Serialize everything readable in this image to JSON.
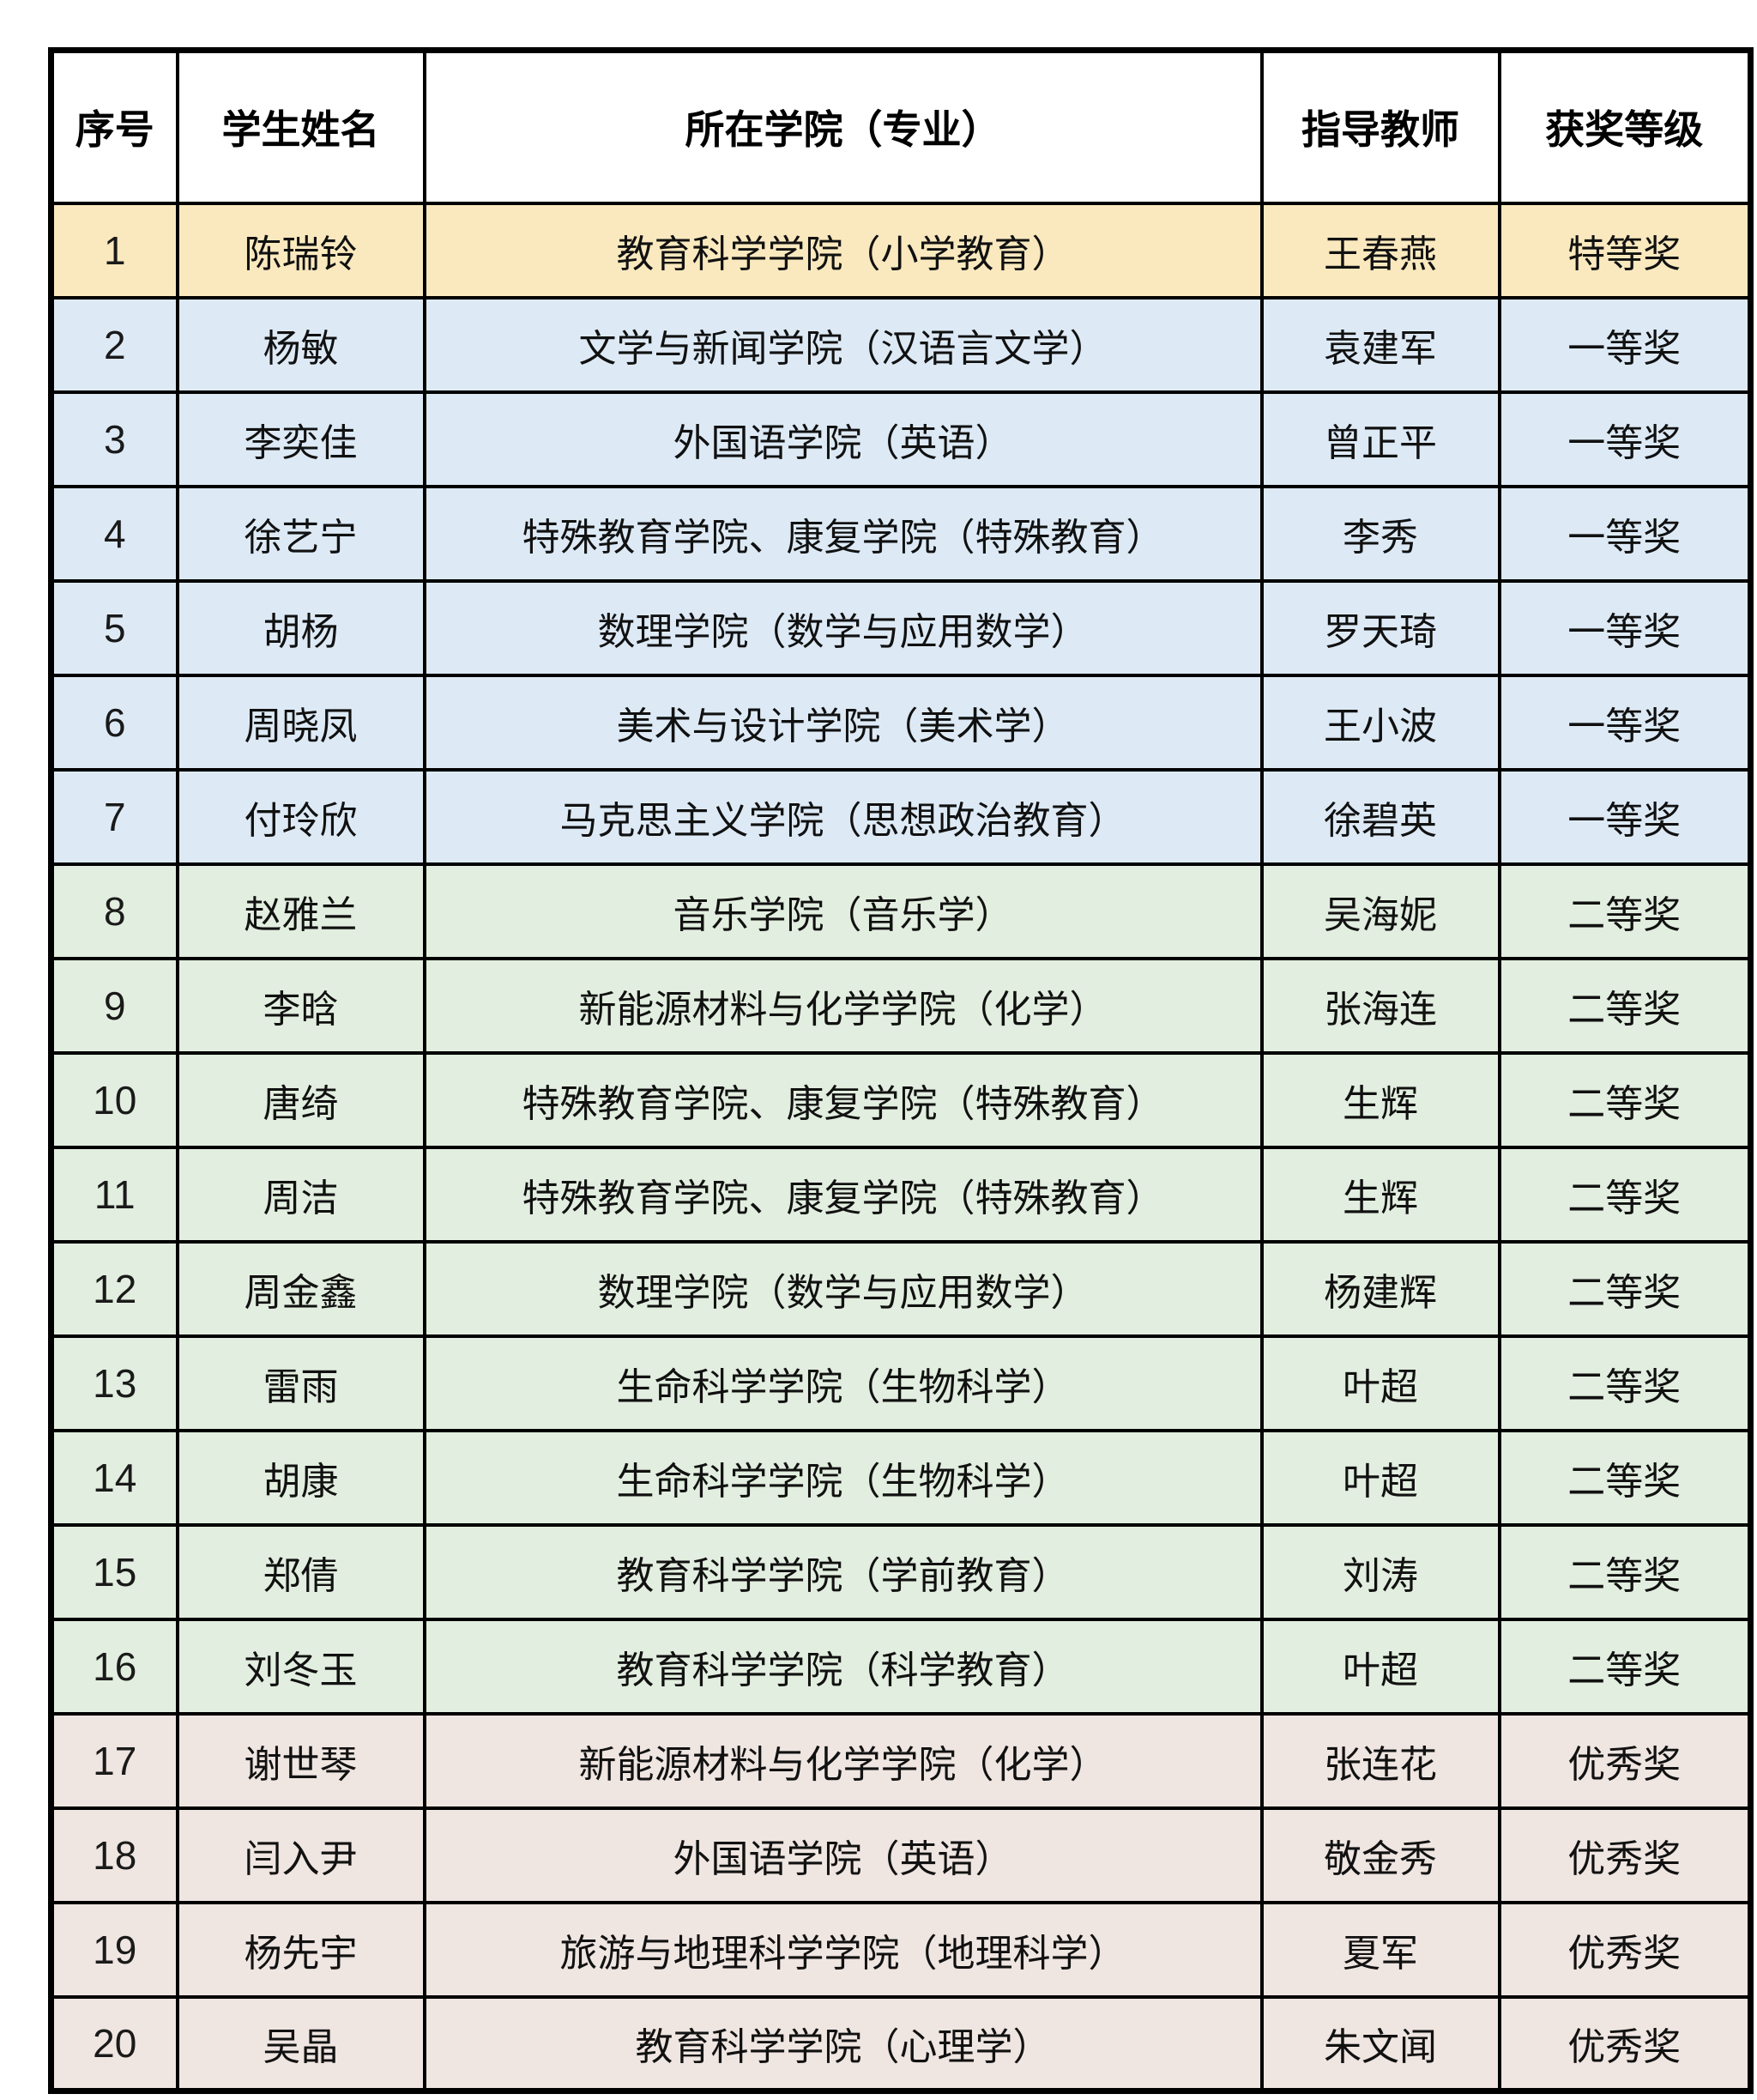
{
  "table": {
    "columns": [
      "序号",
      "学生姓名",
      "所在学院（专业）",
      "指导教师",
      "获奖等级"
    ],
    "tier_colors": {
      "special": "#FAE9BE",
      "first": "#DDEAF6",
      "second": "#E2EEDF",
      "excellent": "#EFE5E1"
    },
    "rows": [
      {
        "no": "1",
        "name": "陈瑞铃",
        "college": "教育科学学院（小学教育）",
        "teacher": "王春燕",
        "award": "特等奖",
        "tier": "special"
      },
      {
        "no": "2",
        "name": "杨敏",
        "college": "文学与新闻学院（汉语言文学）",
        "teacher": "袁建军",
        "award": "一等奖",
        "tier": "first"
      },
      {
        "no": "3",
        "name": "李奕佳",
        "college": "外国语学院（英语）",
        "teacher": "曾正平",
        "award": "一等奖",
        "tier": "first"
      },
      {
        "no": "4",
        "name": "徐艺宁",
        "college": "特殊教育学院、康复学院（特殊教育）",
        "teacher": "李秀",
        "award": "一等奖",
        "tier": "first"
      },
      {
        "no": "5",
        "name": "胡杨",
        "college": "数理学院（数学与应用数学）",
        "teacher": "罗天琦",
        "award": "一等奖",
        "tier": "first"
      },
      {
        "no": "6",
        "name": "周晓凤",
        "college": "美术与设计学院（美术学）",
        "teacher": "王小波",
        "award": "一等奖",
        "tier": "first"
      },
      {
        "no": "7",
        "name": "付玲欣",
        "college": "马克思主义学院（思想政治教育）",
        "teacher": "徐碧英",
        "award": "一等奖",
        "tier": "first"
      },
      {
        "no": "8",
        "name": "赵雅兰",
        "college": "音乐学院（音乐学）",
        "teacher": "吴海妮",
        "award": "二等奖",
        "tier": "second"
      },
      {
        "no": "9",
        "name": "李晗",
        "college": "新能源材料与化学学院（化学）",
        "teacher": "张海连",
        "award": "二等奖",
        "tier": "second"
      },
      {
        "no": "10",
        "name": "唐绮",
        "college": "特殊教育学院、康复学院（特殊教育）",
        "teacher": "生辉",
        "award": "二等奖",
        "tier": "second"
      },
      {
        "no": "11",
        "name": "周洁",
        "college": "特殊教育学院、康复学院（特殊教育）",
        "teacher": "生辉",
        "award": "二等奖",
        "tier": "second"
      },
      {
        "no": "12",
        "name": "周金鑫",
        "college": "数理学院（数学与应用数学）",
        "teacher": "杨建辉",
        "award": "二等奖",
        "tier": "second"
      },
      {
        "no": "13",
        "name": "雷雨",
        "college": "生命科学学院（生物科学）",
        "teacher": "叶超",
        "award": "二等奖",
        "tier": "second"
      },
      {
        "no": "14",
        "name": "胡康",
        "college": "生命科学学院（生物科学）",
        "teacher": "叶超",
        "award": "二等奖",
        "tier": "second"
      },
      {
        "no": "15",
        "name": "郑倩",
        "college": "教育科学学院（学前教育）",
        "teacher": "刘涛",
        "award": "二等奖",
        "tier": "second"
      },
      {
        "no": "16",
        "name": "刘冬玉",
        "college": "教育科学学院（科学教育）",
        "teacher": "叶超",
        "award": "二等奖",
        "tier": "second"
      },
      {
        "no": "17",
        "name": "谢世琴",
        "college": "新能源材料与化学学院（化学）",
        "teacher": "张连花",
        "award": "优秀奖",
        "tier": "excellent"
      },
      {
        "no": "18",
        "name": "闫入尹",
        "college": "外国语学院（英语）",
        "teacher": "敬金秀",
        "award": "优秀奖",
        "tier": "excellent"
      },
      {
        "no": "19",
        "name": "杨先宇",
        "college": "旅游与地理科学学院（地理科学）",
        "teacher": "夏军",
        "award": "优秀奖",
        "tier": "excellent"
      },
      {
        "no": "20",
        "name": "吴晶",
        "college": "教育科学学院（心理学）",
        "teacher": "朱文闻",
        "award": "优秀奖",
        "tier": "excellent"
      }
    ]
  }
}
